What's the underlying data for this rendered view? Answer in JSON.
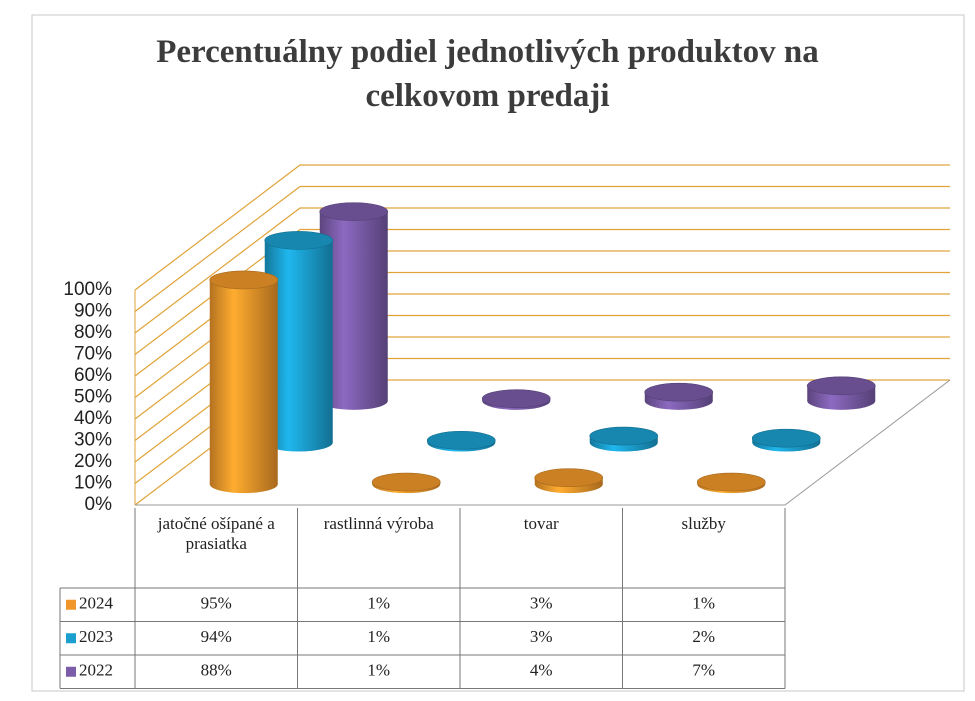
{
  "chart_data": {
    "type": "bar3d",
    "title": "Percentuálny podiel jednotlivých produktov na celkovom predaji",
    "categories": [
      "jatočné ošípané a prasiatka",
      "rastlinná výroba",
      "tovar",
      "služby"
    ],
    "series": [
      {
        "name": "2024",
        "color": "#f0962a",
        "values": [
          95,
          1,
          3,
          1
        ],
        "value_labels": [
          "95%",
          "1%",
          "3%",
          "1%"
        ]
      },
      {
        "name": "2023",
        "color": "#1b9fcf",
        "values": [
          94,
          1,
          3,
          2
        ],
        "value_labels": [
          "94%",
          "1%",
          "3%",
          "2%"
        ]
      },
      {
        "name": "2022",
        "color": "#7a5ca8",
        "values": [
          88,
          1,
          4,
          7
        ],
        "value_labels": [
          "88%",
          "1%",
          "4%",
          "7%"
        ]
      }
    ],
    "ylim": [
      0,
      100
    ],
    "yticks": [
      {
        "value": 0,
        "label": "0%"
      },
      {
        "value": 10,
        "label": "10%"
      },
      {
        "value": 20,
        "label": "20%"
      },
      {
        "value": 30,
        "label": "30%"
      },
      {
        "value": 40,
        "label": "40%"
      },
      {
        "value": 50,
        "label": "50%"
      },
      {
        "value": 60,
        "label": "60%"
      },
      {
        "value": 70,
        "label": "70%"
      },
      {
        "value": 80,
        "label": "80%"
      },
      {
        "value": 90,
        "label": "90%"
      },
      {
        "value": 100,
        "label": "100%"
      }
    ],
    "grid": true
  }
}
